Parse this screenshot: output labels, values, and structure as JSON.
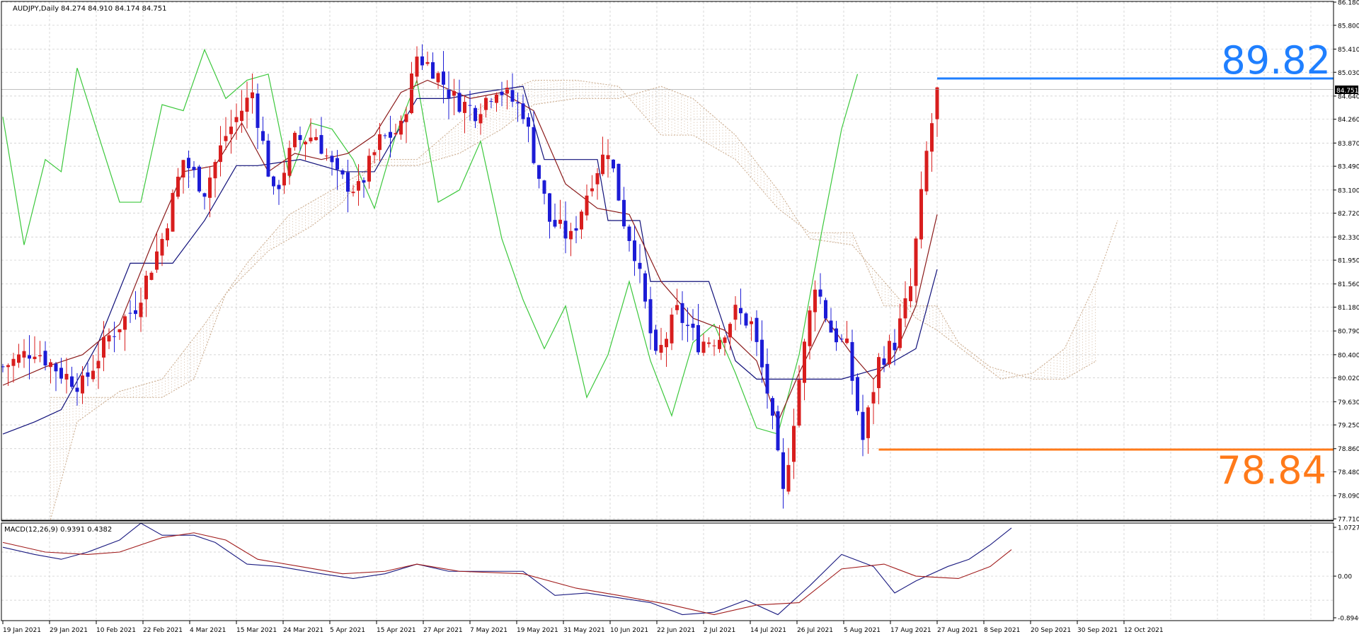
{
  "header": {
    "symbol_timeframe": "AUDJPY,Daily",
    "ohlc": "84.274 84.910 84.174 84.751"
  },
  "macd": {
    "label": "MACD(12,26,9) 0.9391 0.4382",
    "axis_labels": [
      "1.0727",
      "0.00",
      "-0.8946"
    ]
  },
  "annotations": {
    "high_label": "89.82",
    "low_label": "78.84",
    "current_price_tag": "84.751"
  },
  "colors": {
    "bull": "#d81e1e",
    "bear": "#1c1cd6",
    "tenkan": "#8b1a1a",
    "kijun": "#10107a",
    "chikou": "#3cc83c",
    "cloud": "#c9a98a",
    "high_line": "#1f7fff",
    "low_line": "#ff7a1a",
    "macd_main": "#1a1a80",
    "macd_signal": "#a01a1a"
  },
  "chart_data": [
    {
      "type": "candlestick",
      "title": "",
      "y_ticks": [
        "86.180",
        "85.800",
        "85.410",
        "85.030",
        "84.640",
        "84.260",
        "83.870",
        "83.490",
        "83.100",
        "82.720",
        "82.330",
        "81.950",
        "81.560",
        "81.180",
        "80.790",
        "80.400",
        "80.020",
        "79.630",
        "79.250",
        "78.860",
        "78.480",
        "78.090",
        "77.710"
      ],
      "x_ticks": [
        "19 Jan 2021",
        "29 Jan 2021",
        "10 Feb 2021",
        "22 Feb 2021",
        "4 Mar 2021",
        "15 Mar 2021",
        "24 Mar 2021",
        "5 Apr 2021",
        "15 Apr 2021",
        "27 Apr 2021",
        "7 May 2021",
        "19 May 2021",
        "31 May 2021",
        "10 Jun 2021",
        "22 Jun 2021",
        "2 Jul 2021",
        "14 Jul 2021",
        "26 Jul 2021",
        "5 Aug 2021",
        "17 Aug 2021",
        "27 Aug 2021",
        "8 Sep 2021",
        "20 Sep 2021",
        "30 Sep 2021",
        "12 Oct 2021"
      ],
      "ylim": [
        77.71,
        86.18
      ],
      "grid": true,
      "candle_anchors": [
        [
          0,
          80.2
        ],
        [
          6,
          80.5
        ],
        [
          11,
          80.1
        ],
        [
          15,
          79.9
        ],
        [
          20,
          80.7
        ],
        [
          25,
          81.2
        ],
        [
          30,
          82.3
        ],
        [
          34,
          83.6
        ],
        [
          38,
          83.1
        ],
        [
          42,
          84.0
        ],
        [
          47,
          84.7
        ],
        [
          51,
          83.0
        ],
        [
          55,
          83.9
        ],
        [
          59,
          84.0
        ],
        [
          63,
          83.3
        ],
        [
          67,
          83.1
        ],
        [
          71,
          83.9
        ],
        [
          75,
          84.1
        ],
        [
          78,
          85.3
        ],
        [
          81,
          85.1
        ],
        [
          85,
          84.6
        ],
        [
          89,
          84.4
        ],
        [
          93,
          84.8
        ],
        [
          98,
          84.4
        ],
        [
          103,
          82.6
        ],
        [
          107,
          82.3
        ],
        [
          111,
          83.3
        ],
        [
          114,
          83.8
        ],
        [
          117,
          82.6
        ],
        [
          119,
          82.1
        ],
        [
          123,
          80.3
        ],
        [
          127,
          81.1
        ],
        [
          131,
          80.6
        ],
        [
          135,
          80.7
        ],
        [
          138,
          81.1
        ],
        [
          141,
          80.9
        ],
        [
          144,
          79.8
        ],
        [
          147,
          78.1
        ],
        [
          150,
          80.0
        ],
        [
          153,
          81.6
        ],
        [
          156,
          80.8
        ],
        [
          159,
          80.5
        ],
        [
          162,
          79.0
        ],
        [
          165,
          80.3
        ],
        [
          168,
          80.6
        ],
        [
          171,
          81.5
        ],
        [
          174,
          83.7
        ],
        [
          176,
          84.7
        ]
      ],
      "series": [
        {
          "name": "",
          "kind": "tenkan",
          "points": [
            [
              0,
              79.9
            ],
            [
              8,
              80.2
            ],
            [
              15,
              80.4
            ],
            [
              22,
              80.9
            ],
            [
              28,
              82.2
            ],
            [
              34,
              83.4
            ],
            [
              40,
              83.5
            ],
            [
              45,
              84.2
            ],
            [
              50,
              83.4
            ],
            [
              55,
              83.7
            ],
            [
              60,
              83.6
            ],
            [
              65,
              83.7
            ],
            [
              70,
              84.0
            ],
            [
              75,
              84.7
            ],
            [
              80,
              84.9
            ],
            [
              88,
              84.6
            ],
            [
              94,
              84.7
            ],
            [
              100,
              84.4
            ],
            [
              106,
              83.2
            ],
            [
              112,
              82.8
            ],
            [
              118,
              82.7
            ],
            [
              124,
              81.6
            ],
            [
              130,
              81.0
            ],
            [
              136,
              80.8
            ],
            [
              142,
              80.3
            ],
            [
              146,
              79.3
            ],
            [
              150,
              80.1
            ],
            [
              155,
              81.0
            ],
            [
              160,
              80.4
            ],
            [
              164,
              80.0
            ],
            [
              168,
              80.4
            ],
            [
              172,
              81.2
            ],
            [
              176,
              82.7
            ]
          ]
        },
        {
          "name": "",
          "kind": "kijun",
          "points": [
            [
              0,
              79.1
            ],
            [
              6,
              79.3
            ],
            [
              11,
              79.5
            ],
            [
              18,
              80.6
            ],
            [
              24,
              81.9
            ],
            [
              32,
              81.9
            ],
            [
              38,
              82.6
            ],
            [
              44,
              83.5
            ],
            [
              48,
              83.5
            ],
            [
              56,
              83.6
            ],
            [
              64,
              83.4
            ],
            [
              70,
              83.4
            ],
            [
              78,
              84.6
            ],
            [
              84,
              84.6
            ],
            [
              90,
              84.7
            ],
            [
              98,
              84.8
            ],
            [
              102,
              83.6
            ],
            [
              112,
              83.6
            ],
            [
              114,
              82.6
            ],
            [
              120,
              82.6
            ],
            [
              122,
              81.6
            ],
            [
              133,
              81.6
            ],
            [
              138,
              80.3
            ],
            [
              142,
              80.0
            ],
            [
              150,
              80.0
            ],
            [
              158,
              80.0
            ],
            [
              162,
              80.1
            ],
            [
              166,
              80.2
            ],
            [
              172,
              80.5
            ],
            [
              176,
              81.8
            ]
          ]
        },
        {
          "name": "",
          "kind": "chikou",
          "points": [
            [
              0,
              84.3
            ],
            [
              4,
              82.2
            ],
            [
              8,
              83.6
            ],
            [
              11,
              83.4
            ],
            [
              14,
              85.1
            ],
            [
              18,
              84.0
            ],
            [
              22,
              82.9
            ],
            [
              26,
              82.9
            ],
            [
              30,
              84.5
            ],
            [
              34,
              84.4
            ],
            [
              38,
              85.4
            ],
            [
              42,
              84.6
            ],
            [
              46,
              84.9
            ],
            [
              50,
              85.0
            ],
            [
              54,
              83.3
            ],
            [
              58,
              84.2
            ],
            [
              62,
              84.1
            ],
            [
              66,
              83.6
            ],
            [
              70,
              82.8
            ],
            [
              74,
              84.0
            ],
            [
              78,
              84.9
            ],
            [
              82,
              82.9
            ],
            [
              86,
              83.1
            ],
            [
              90,
              83.9
            ],
            [
              94,
              82.3
            ],
            [
              98,
              81.3
            ],
            [
              102,
              80.5
            ],
            [
              106,
              81.2
            ],
            [
              110,
              79.7
            ],
            [
              114,
              80.4
            ],
            [
              118,
              81.6
            ],
            [
              122,
              80.3
            ],
            [
              126,
              79.4
            ],
            [
              130,
              80.6
            ],
            [
              134,
              80.9
            ],
            [
              138,
              80.1
            ],
            [
              142,
              79.2
            ],
            [
              146,
              79.1
            ],
            [
              150,
              80.4
            ],
            [
              154,
              82.3
            ],
            [
              158,
              84.1
            ],
            [
              161,
              85.0
            ]
          ]
        },
        {
          "name": "",
          "kind": "senkou_a",
          "points": [
            [
              9,
              77.7
            ],
            [
              14,
              79.3
            ],
            [
              22,
              79.8
            ],
            [
              30,
              80.0
            ],
            [
              38,
              80.9
            ],
            [
              46,
              81.9
            ],
            [
              54,
              82.7
            ],
            [
              62,
              83.1
            ],
            [
              70,
              83.5
            ],
            [
              78,
              83.5
            ],
            [
              86,
              83.7
            ],
            [
              94,
              84.1
            ],
            [
              100,
              84.5
            ],
            [
              108,
              84.6
            ],
            [
              116,
              84.6
            ],
            [
              124,
              84.8
            ],
            [
              130,
              84.6
            ],
            [
              138,
              84.0
            ],
            [
              146,
              83.1
            ],
            [
              152,
              82.3
            ],
            [
              160,
              82.2
            ],
            [
              166,
              81.6
            ],
            [
              172,
              81.0
            ],
            [
              176,
              80.8
            ],
            [
              182,
              80.4
            ],
            [
              188,
              80.0
            ],
            [
              194,
              80.1
            ],
            [
              200,
              80.5
            ],
            [
              206,
              81.6
            ],
            [
              210,
              82.6
            ]
          ]
        },
        {
          "name": "",
          "kind": "senkou_b",
          "points": [
            [
              9,
              79.7
            ],
            [
              30,
              79.7
            ],
            [
              36,
              80.0
            ],
            [
              42,
              81.4
            ],
            [
              50,
              82.1
            ],
            [
              58,
              82.5
            ],
            [
              64,
              82.9
            ],
            [
              70,
              83.6
            ],
            [
              78,
              83.6
            ],
            [
              86,
              84.2
            ],
            [
              94,
              84.7
            ],
            [
              100,
              84.9
            ],
            [
              108,
              84.9
            ],
            [
              116,
              84.8
            ],
            [
              124,
              84.0
            ],
            [
              130,
              84.0
            ],
            [
              138,
              83.6
            ],
            [
              146,
              82.8
            ],
            [
              152,
              82.4
            ],
            [
              160,
              82.4
            ],
            [
              166,
              81.2
            ],
            [
              176,
              81.2
            ],
            [
              180,
              80.6
            ],
            [
              186,
              80.2
            ],
            [
              194,
              80.0
            ],
            [
              200,
              80.0
            ],
            [
              206,
              80.3
            ]
          ]
        }
      ]
    },
    {
      "type": "line",
      "title": "",
      "ylim": [
        -0.8946,
        1.0727
      ],
      "series": [
        {
          "name": "",
          "kind": "macd_main",
          "points": [
            [
              0,
              0.6
            ],
            [
              6,
              0.45
            ],
            [
              11,
              0.35
            ],
            [
              16,
              0.5
            ],
            [
              22,
              0.75
            ],
            [
              26,
              1.1
            ],
            [
              30,
              0.85
            ],
            [
              36,
              0.85
            ],
            [
              40,
              0.7
            ],
            [
              46,
              0.25
            ],
            [
              52,
              0.2
            ],
            [
              60,
              0.05
            ],
            [
              66,
              -0.05
            ],
            [
              72,
              0.05
            ],
            [
              78,
              0.25
            ],
            [
              84,
              0.1
            ],
            [
              90,
              0.1
            ],
            [
              98,
              0.1
            ],
            [
              104,
              -0.4
            ],
            [
              110,
              -0.35
            ],
            [
              116,
              -0.45
            ],
            [
              122,
              -0.55
            ],
            [
              128,
              -0.8
            ],
            [
              134,
              -0.75
            ],
            [
              140,
              -0.5
            ],
            [
              146,
              -0.8
            ],
            [
              152,
              -0.2
            ],
            [
              158,
              0.45
            ],
            [
              164,
              0.2
            ],
            [
              168,
              -0.35
            ],
            [
              172,
              -0.1
            ],
            [
              178,
              0.2
            ],
            [
              182,
              0.35
            ],
            [
              186,
              0.65
            ],
            [
              190,
              1.0
            ]
          ]
        },
        {
          "name": "",
          "kind": "macd_signal",
          "points": [
            [
              0,
              0.7
            ],
            [
              8,
              0.5
            ],
            [
              16,
              0.45
            ],
            [
              22,
              0.5
            ],
            [
              30,
              0.8
            ],
            [
              36,
              0.9
            ],
            [
              42,
              0.75
            ],
            [
              48,
              0.35
            ],
            [
              56,
              0.2
            ],
            [
              64,
              0.05
            ],
            [
              72,
              0.1
            ],
            [
              78,
              0.25
            ],
            [
              86,
              0.1
            ],
            [
              98,
              0.05
            ],
            [
              108,
              -0.25
            ],
            [
              116,
              -0.4
            ],
            [
              126,
              -0.6
            ],
            [
              134,
              -0.8
            ],
            [
              142,
              -0.6
            ],
            [
              150,
              -0.55
            ],
            [
              158,
              0.15
            ],
            [
              166,
              0.25
            ],
            [
              172,
              0.0
            ],
            [
              180,
              -0.05
            ],
            [
              186,
              0.2
            ],
            [
              190,
              0.55
            ]
          ]
        }
      ]
    }
  ]
}
